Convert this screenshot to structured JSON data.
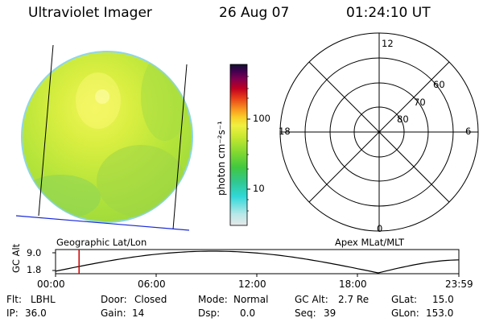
{
  "header": {
    "instrument": "Ultraviolet Imager",
    "date": "26 Aug 07",
    "time": "01:24:10 UT"
  },
  "image_panel": {
    "projection_label": "Geographic Lat/Lon"
  },
  "colorbar": {
    "unit_label": "photon cm⁻²s⁻¹",
    "scale": "log",
    "tick_labels": [
      "100",
      "10"
    ],
    "colors": [
      "#e8e8e8",
      "#b8e8e8",
      "#30d8d8",
      "#30c890",
      "#40c840",
      "#80d830",
      "#c8e830",
      "#f0f040",
      "#f8d028",
      "#f89820",
      "#e84018",
      "#c00020",
      "#800050",
      "#400050",
      "#101030"
    ]
  },
  "polar_plot": {
    "label": "Apex MLat/MLT",
    "mlt_labels": {
      "top": "12",
      "left": "18",
      "right": "6",
      "bottom": "0"
    },
    "lat_labels": [
      "60",
      "70",
      "80"
    ]
  },
  "altitude_chart": {
    "ylabel": "GC Alt",
    "y_ticks": [
      "9.0",
      "1.8"
    ],
    "x_ticks": [
      "00:00",
      "06:00",
      "12:00",
      "18:00",
      "23:59"
    ],
    "current_time_marker_hours": 1.4,
    "marker_color": "#cc0000"
  },
  "status": {
    "filter_label": "Flt:",
    "filter_value": "LBHL",
    "door_label": "Door:",
    "door_value": "Closed",
    "mode_label": "Mode:",
    "mode_value": "Normal",
    "gcalt_label": "GC Alt:",
    "gcalt_value": "2.7 Re",
    "glat_label": "GLat:",
    "glat_value": "15.0",
    "ip_label": "IP:",
    "ip_value": "36.0",
    "gain_label": "Gain:",
    "gain_value": "14",
    "dsp_label": "Dsp:",
    "dsp_value": "0.0",
    "seq_label": "Seq:",
    "seq_value": "39",
    "glon_label": "GLon:",
    "glon_value": "153.0"
  }
}
